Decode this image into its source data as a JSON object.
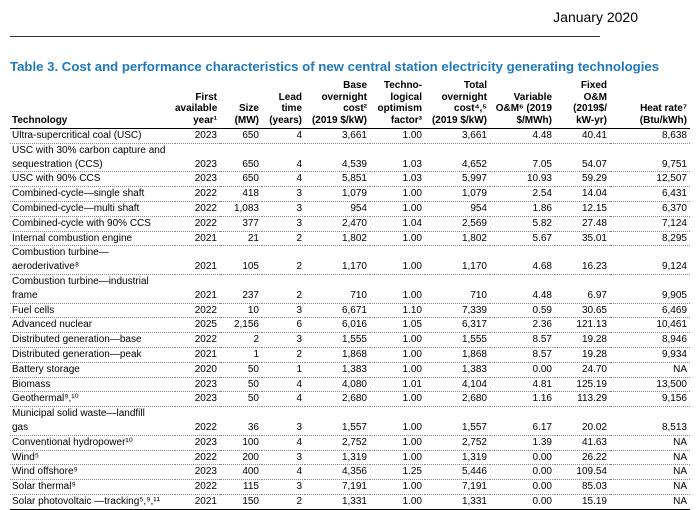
{
  "header": {
    "date": "January 2020"
  },
  "title": "Table 3. Cost and performance characteristics of new central station electricity generating technologies",
  "table": {
    "columns": [
      [
        "Technology"
      ],
      [
        "First",
        "available",
        "year¹"
      ],
      [
        "Size",
        "(MW)"
      ],
      [
        "Lead",
        "time",
        "(years)"
      ],
      [
        "Base",
        "overnight",
        "cost²",
        "(2019 $/kW)"
      ],
      [
        "Techno-",
        "logical",
        "optimism",
        "factor³"
      ],
      [
        "Total",
        "overnight",
        "cost⁴,⁵",
        "(2019 $/kW)"
      ],
      [
        "Variable",
        "O&M⁶ (2019",
        "$/MWh)"
      ],
      [
        "Fixed O&M",
        "(2019$/",
        "kW-yr)"
      ],
      [
        "Heat rate⁷",
        "(Btu/kWh)"
      ]
    ],
    "rows": [
      [
        [
          "Ultra-supercritical coal (USC)"
        ],
        "2023",
        "650",
        "4",
        "3,661",
        "1.00",
        "3,661",
        "4.48",
        "40.41",
        "8,638"
      ],
      [
        [
          "USC with 30% carbon capture and",
          "sequestration (CCS)"
        ],
        "2023",
        "650",
        "4",
        "4,539",
        "1.03",
        "4,652",
        "7.05",
        "54.07",
        "9,751"
      ],
      [
        [
          "USC with 90% CCS"
        ],
        "2023",
        "650",
        "4",
        "5,851",
        "1.03",
        "5,997",
        "10.93",
        "59.29",
        "12,507"
      ],
      [
        [
          "Combined-cycle—single shaft"
        ],
        "2022",
        "418",
        "3",
        "1,079",
        "1.00",
        "1,079",
        "2.54",
        "14.04",
        "6,431"
      ],
      [
        [
          "Combined-cycle—multi shaft"
        ],
        "2022",
        "1,083",
        "3",
        "954",
        "1.00",
        "954",
        "1.86",
        "12.15",
        "6,370"
      ],
      [
        [
          "Combined-cycle with 90% CCS"
        ],
        "2022",
        "377",
        "3",
        "2,470",
        "1.04",
        "2,569",
        "5.82",
        "27.48",
        "7,124"
      ],
      [
        [
          "Internal combustion engine"
        ],
        "2021",
        "21",
        "2",
        "1,802",
        "1.00",
        "1,802",
        "5.67",
        "35.01",
        "8,295"
      ],
      [
        [
          "Combustion turbine—",
          "aeroderivative⁸"
        ],
        "2021",
        "105",
        "2",
        "1,170",
        "1.00",
        "1,170",
        "4.68",
        "16.23",
        "9,124"
      ],
      [
        [
          "Combustion turbine—industrial",
          "frame"
        ],
        "2021",
        "237",
        "2",
        "710",
        "1.00",
        "710",
        "4.48",
        "6.97",
        "9,905"
      ],
      [
        [
          "Fuel cells"
        ],
        "2022",
        "10",
        "3",
        "6,671",
        "1.10",
        "7,339",
        "0.59",
        "30.65",
        "6,469"
      ],
      [
        [
          "Advanced nuclear"
        ],
        "2025",
        "2,156",
        "6",
        "6,016",
        "1.05",
        "6,317",
        "2.36",
        "121.13",
        "10,461"
      ],
      [
        [
          "Distributed generation—base"
        ],
        "2022",
        "2",
        "3",
        "1,555",
        "1.00",
        "1,555",
        "8.57",
        "19.28",
        "8,946"
      ],
      [
        [
          "Distributed generation—peak"
        ],
        "2021",
        "1",
        "2",
        "1,868",
        "1.00",
        "1,868",
        "8.57",
        "19.28",
        "9,934"
      ],
      [
        [
          "Battery storage"
        ],
        "2020",
        "50",
        "1",
        "1,383",
        "1.00",
        "1,383",
        "0.00",
        "24.70",
        "NA"
      ],
      [
        [
          "Biomass"
        ],
        "2023",
        "50",
        "4",
        "4,080",
        "1.01",
        "4,104",
        "4.81",
        "125.19",
        "13,500"
      ],
      [
        [
          "Geothermal⁹,¹⁰"
        ],
        "2023",
        "50",
        "4",
        "2,680",
        "1.00",
        "2,680",
        "1.16",
        "113.29",
        "9,156"
      ],
      [
        [
          "Municipal solid waste—landfill",
          "gas"
        ],
        "2022",
        "36",
        "3",
        "1,557",
        "1.00",
        "1,557",
        "6.17",
        "20.02",
        "8,513"
      ],
      [
        [
          "Conventional hydropower¹⁰"
        ],
        "2023",
        "100",
        "4",
        "2,752",
        "1.00",
        "2,752",
        "1.39",
        "41.63",
        "NA"
      ],
      [
        [
          "Wind⁵"
        ],
        "2022",
        "200",
        "3",
        "1,319",
        "1.00",
        "1,319",
        "0.00",
        "26.22",
        "NA"
      ],
      [
        [
          "Wind offshore⁹"
        ],
        "2023",
        "400",
        "4",
        "4,356",
        "1.25",
        "5,446",
        "0.00",
        "109.54",
        "NA"
      ],
      [
        [
          "Solar thermal⁹"
        ],
        "2022",
        "115",
        "3",
        "7,191",
        "1.00",
        "7,191",
        "0.00",
        "85.03",
        "NA"
      ],
      [
        [
          "Solar photovoltaic —tracking⁵,⁹,¹¹"
        ],
        "2021",
        "150",
        "2",
        "1,331",
        "1.00",
        "1,331",
        "0.00",
        "15.19",
        "NA"
      ]
    ]
  }
}
